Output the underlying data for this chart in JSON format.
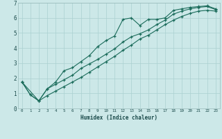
{
  "xlabel": "Humidex (Indice chaleur)",
  "xlim": [
    -0.5,
    23.5
  ],
  "ylim": [
    0,
    7
  ],
  "bg_color": "#cce8e8",
  "grid_color": "#aad0d0",
  "line_color": "#1a6b5a",
  "line1_x": [
    0,
    1,
    2,
    3,
    4,
    5,
    6,
    7,
    8,
    9,
    10,
    11,
    12,
    13,
    14,
    15,
    16,
    17,
    18,
    19,
    20,
    21,
    22,
    23
  ],
  "line1_y": [
    1.75,
    0.9,
    0.5,
    1.3,
    1.75,
    2.5,
    2.7,
    3.1,
    3.5,
    4.1,
    4.5,
    4.8,
    5.9,
    6.0,
    5.5,
    5.9,
    5.9,
    6.0,
    6.5,
    6.6,
    6.7,
    6.75,
    6.8,
    6.6
  ],
  "line2_x": [
    0,
    1,
    2,
    3,
    4,
    5,
    6,
    7,
    8,
    9,
    10,
    11,
    12,
    13,
    14,
    15,
    16,
    17,
    18,
    19,
    20,
    21,
    22,
    23
  ],
  "line2_y": [
    1.75,
    0.9,
    0.5,
    1.3,
    1.6,
    1.9,
    2.2,
    2.65,
    2.95,
    3.25,
    3.6,
    3.95,
    4.4,
    4.75,
    4.95,
    5.2,
    5.55,
    5.85,
    6.25,
    6.45,
    6.6,
    6.7,
    6.75,
    6.55
  ],
  "line3_x": [
    0,
    2,
    3,
    4,
    5,
    6,
    7,
    8,
    9,
    10,
    11,
    12,
    13,
    14,
    15,
    16,
    17,
    18,
    19,
    20,
    21,
    22,
    23
  ],
  "line3_y": [
    1.75,
    0.5,
    0.85,
    1.15,
    1.45,
    1.75,
    2.05,
    2.4,
    2.75,
    3.1,
    3.45,
    3.85,
    4.2,
    4.6,
    4.85,
    5.2,
    5.55,
    5.85,
    6.1,
    6.3,
    6.45,
    6.5,
    6.45
  ],
  "ytick_values": [
    0,
    1,
    2,
    3,
    4,
    5,
    6,
    7
  ],
  "marker": "+",
  "marker_size": 3.5,
  "line_width": 0.8
}
